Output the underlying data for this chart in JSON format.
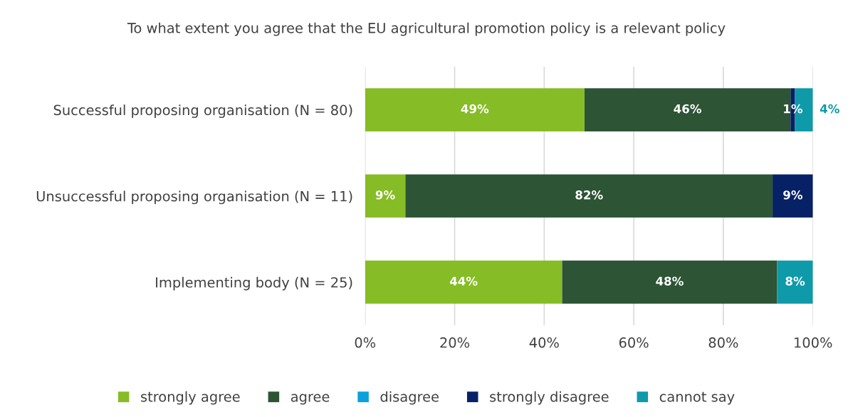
{
  "chart_data": {
    "type": "bar",
    "orientation": "horizontal",
    "stacked": true,
    "title": "To what extent you agree that the EU agricultural promotion policy is a relevant policy",
    "categories": [
      "Successful proposing organisation (N = 80)",
      "Unsuccessful proposing organisation (N = 11)",
      "Implementing body (N = 25)"
    ],
    "series": [
      {
        "name": "strongly agree",
        "color": "#86bc25",
        "values": [
          49,
          9,
          44
        ],
        "value_labels": [
          "49%",
          "9%",
          "44%"
        ]
      },
      {
        "name": "agree",
        "color": "#2d5434",
        "values": [
          46,
          82,
          48
        ],
        "value_labels": [
          "46%",
          "82%",
          "48%"
        ]
      },
      {
        "name": "disagree",
        "color": "#0aa1dd",
        "values": [
          0,
          0,
          0
        ],
        "value_labels": [
          null,
          null,
          null
        ]
      },
      {
        "name": "strongly disagree",
        "color": "#062166",
        "values": [
          1,
          9,
          0
        ],
        "value_labels": [
          "1%",
          "9%",
          null
        ]
      },
      {
        "name": "cannot say",
        "color": "#0f9aaa",
        "values": [
          4,
          0,
          8
        ],
        "value_labels": [
          "4%",
          null,
          "8%"
        ]
      }
    ],
    "xlim": [
      0,
      100
    ],
    "xticks": [
      {
        "value": 0,
        "label": "0%"
      },
      {
        "value": 20,
        "label": "20%"
      },
      {
        "value": 40,
        "label": "40%"
      },
      {
        "value": 60,
        "label": "60%"
      },
      {
        "value": 80,
        "label": "80%"
      },
      {
        "value": 100,
        "label": "100%"
      }
    ],
    "grid": "x",
    "legend": "bottom"
  }
}
